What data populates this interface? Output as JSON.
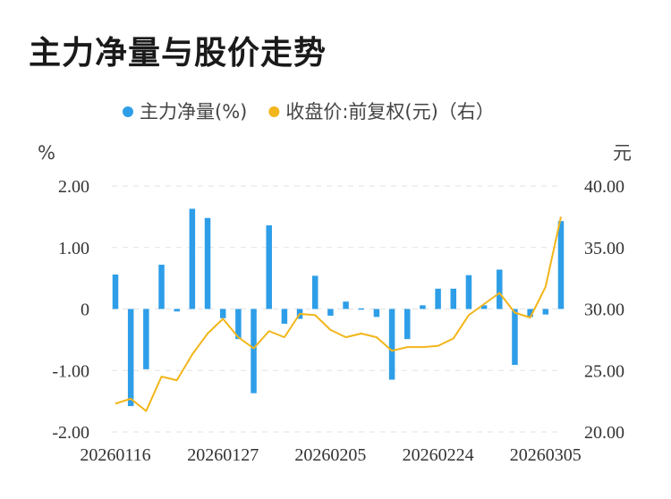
{
  "title": "主力净量与股价走势",
  "chart_data": {
    "type": "bar+line",
    "legend": [
      {
        "name": "主力净量(%)",
        "color": "#2e9ee8",
        "marker": "dot"
      },
      {
        "name": "收盘价:前复权(元)（右）",
        "color": "#f2b51a",
        "marker": "dot"
      }
    ],
    "y_left_unit": "%",
    "y_right_unit": "元",
    "y_left_ticks": [
      "2.00",
      "1.00",
      "0",
      "-1.00",
      "-2.00"
    ],
    "y_right_ticks": [
      "40.00",
      "35.00",
      "30.00",
      "25.00",
      "20.00"
    ],
    "y_left_range": [
      -2,
      2
    ],
    "y_right_range": [
      20,
      40
    ],
    "x_tick_labels": [
      {
        "index": 0,
        "label": "20260116"
      },
      {
        "index": 7,
        "label": "20260127"
      },
      {
        "index": 14,
        "label": "20260205"
      },
      {
        "index": 21,
        "label": "20260224"
      },
      {
        "index": 28,
        "label": "20260305"
      }
    ],
    "series": [
      {
        "name": "主力净量(%)",
        "type": "bar",
        "axis": "left",
        "values": [
          0.56,
          -1.58,
          -0.98,
          0.72,
          -0.04,
          1.63,
          1.48,
          -0.15,
          -0.49,
          -1.37,
          1.36,
          -0.24,
          -0.16,
          0.54,
          -0.11,
          0.12,
          0.01,
          -0.13,
          -1.15,
          -0.49,
          0.06,
          0.33,
          0.33,
          0.55,
          0.06,
          0.64,
          -0.91,
          -0.13,
          -0.09,
          1.43
        ]
      },
      {
        "name": "收盘价:前复权(元)（右）",
        "type": "line",
        "axis": "right",
        "values": [
          22.3,
          22.7,
          21.7,
          24.5,
          24.2,
          26.3,
          28.0,
          29.2,
          27.7,
          26.8,
          28.2,
          27.7,
          29.6,
          29.5,
          28.3,
          27.7,
          28.0,
          27.7,
          26.6,
          26.9,
          26.9,
          27.0,
          27.6,
          29.5,
          30.4,
          31.3,
          29.7,
          29.3,
          31.8,
          37.5
        ]
      }
    ]
  }
}
